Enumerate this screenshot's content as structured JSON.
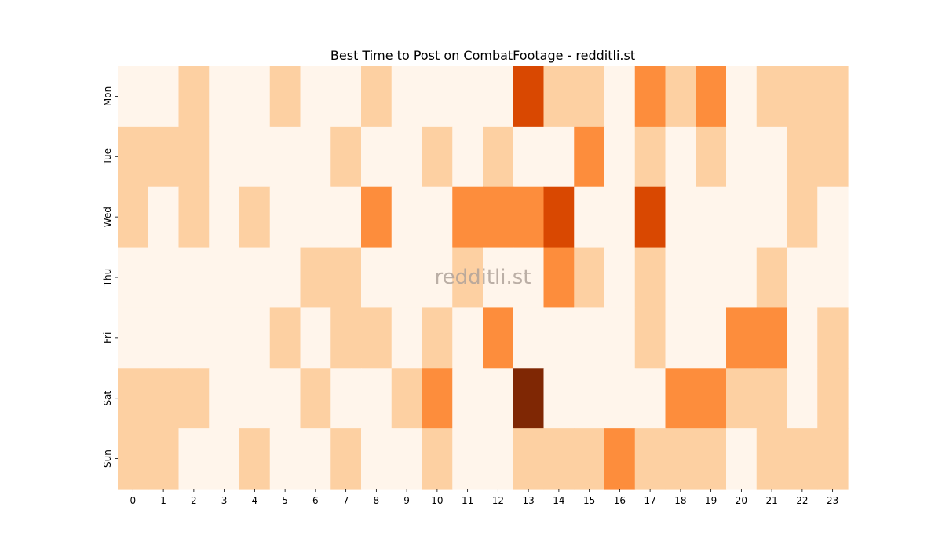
{
  "chart_data": {
    "type": "heatmap",
    "title": "Best Time to Post on CombatFootage - redditli.st",
    "watermark": "redditli.st",
    "x_categories": [
      "0",
      "1",
      "2",
      "3",
      "4",
      "5",
      "6",
      "7",
      "8",
      "9",
      "10",
      "11",
      "12",
      "13",
      "14",
      "15",
      "16",
      "17",
      "18",
      "19",
      "20",
      "21",
      "22",
      "23"
    ],
    "y_categories": [
      "Mon",
      "Tue",
      "Wed",
      "Thu",
      "Fri",
      "Sat",
      "Sun"
    ],
    "values": [
      [
        0,
        0,
        1,
        0,
        0,
        1,
        0,
        0,
        1,
        0,
        0,
        0,
        0,
        3,
        1,
        1,
        0,
        2,
        1,
        2,
        0,
        1,
        1,
        1
      ],
      [
        1,
        1,
        1,
        0,
        0,
        0,
        0,
        1,
        0,
        0,
        1,
        0,
        1,
        0,
        0,
        2,
        0,
        1,
        0,
        1,
        0,
        0,
        1,
        1
      ],
      [
        1,
        0,
        1,
        0,
        1,
        0,
        0,
        0,
        2,
        0,
        0,
        2,
        2,
        2,
        3,
        0,
        0,
        3,
        0,
        0,
        0,
        0,
        1,
        0
      ],
      [
        0,
        0,
        0,
        0,
        0,
        0,
        1,
        1,
        0,
        0,
        0,
        1,
        0,
        0,
        2,
        1,
        0,
        1,
        0,
        0,
        0,
        1,
        0,
        0
      ],
      [
        0,
        0,
        0,
        0,
        0,
        1,
        0,
        1,
        1,
        0,
        1,
        0,
        2,
        0,
        0,
        0,
        0,
        1,
        0,
        0,
        2,
        2,
        0,
        1
      ],
      [
        1,
        1,
        1,
        0,
        0,
        0,
        1,
        0,
        0,
        1,
        2,
        0,
        0,
        4,
        0,
        0,
        0,
        0,
        2,
        2,
        1,
        1,
        0,
        1
      ],
      [
        1,
        1,
        0,
        0,
        1,
        0,
        0,
        1,
        0,
        0,
        1,
        0,
        0,
        1,
        1,
        1,
        2,
        1,
        1,
        1,
        0,
        1,
        1,
        1
      ]
    ],
    "value_range": [
      0,
      4
    ],
    "colors": [
      "#fff5eb",
      "#fdd0a2",
      "#fd8d3c",
      "#d94801",
      "#7f2704"
    ],
    "colorbar": false,
    "grid": false
  }
}
